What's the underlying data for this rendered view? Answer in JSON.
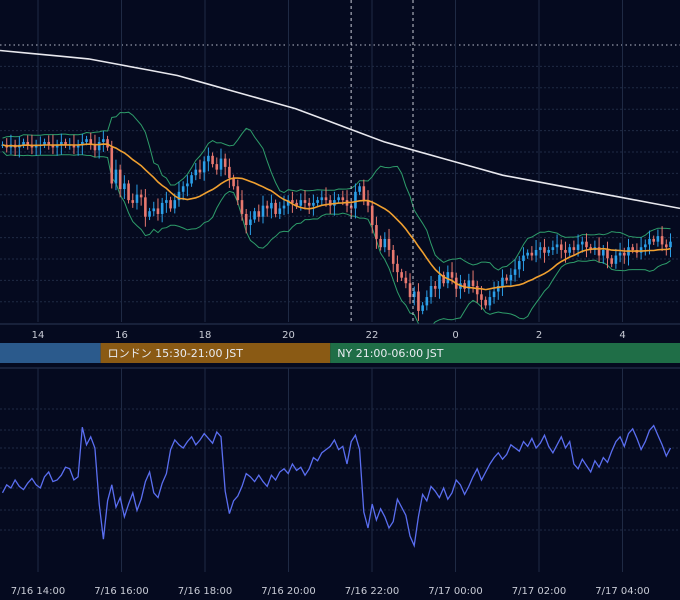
{
  "colors": {
    "background": "#050a1f",
    "grid": "#1f2a44",
    "bull": "#2b9fe8",
    "bear": "#e8786f",
    "ma_long": "#e8e8ee",
    "ma_mid": "#f0a030",
    "bollinger": "#2e9d6a",
    "oscillator": "#5a6ef0",
    "tokyo": "#2b5a8c",
    "london": "#8a5a14",
    "newyork": "#1f6e47"
  },
  "chart_data": [
    {
      "type": "candlestick",
      "x_hour_ticks": [
        "14",
        "16",
        "18",
        "20",
        "22",
        "0",
        "2",
        "4"
      ],
      "sessions": [
        {
          "label": "",
          "start": "7/16 09:00",
          "end": "7/16 15:30",
          "color": "tokyo"
        },
        {
          "label": "ロンドン 15:30-21:00 JST",
          "start": "7/16 15:30",
          "end": "7/16 21:00",
          "color": "london"
        },
        {
          "label": "NY 21:00-06:00 JST",
          "start": "7/16 21:00",
          "end": "7/17 06:00",
          "color": "newyork"
        }
      ],
      "crosshair_time": "7/16 21:30",
      "series_close": [
        0.64,
        0.63,
        0.64,
        0.63,
        0.64,
        0.65,
        0.64,
        0.63,
        0.64,
        0.64,
        0.65,
        0.64,
        0.63,
        0.64,
        0.65,
        0.64,
        0.64,
        0.63,
        0.64,
        0.65,
        0.66,
        0.64,
        0.62,
        0.65,
        0.66,
        0.63,
        0.5,
        0.55,
        0.48,
        0.5,
        0.44,
        0.43,
        0.46,
        0.45,
        0.38,
        0.4,
        0.41,
        0.39,
        0.43,
        0.44,
        0.41,
        0.44,
        0.47,
        0.49,
        0.5,
        0.53,
        0.55,
        0.54,
        0.58,
        0.6,
        0.57,
        0.55,
        0.59,
        0.56,
        0.52,
        0.49,
        0.44,
        0.39,
        0.35,
        0.37,
        0.4,
        0.38,
        0.42,
        0.41,
        0.43,
        0.39,
        0.41,
        0.42,
        0.44,
        0.43,
        0.42,
        0.44,
        0.43,
        0.42,
        0.43,
        0.44,
        0.45,
        0.44,
        0.42,
        0.44,
        0.45,
        0.44,
        0.42,
        0.41,
        0.47,
        0.49,
        0.44,
        0.42,
        0.35,
        0.3,
        0.27,
        0.3,
        0.26,
        0.21,
        0.18,
        0.16,
        0.14,
        0.09,
        0.11,
        0.04,
        0.06,
        0.09,
        0.13,
        0.12,
        0.17,
        0.14,
        0.18,
        0.16,
        0.12,
        0.14,
        0.12,
        0.15,
        0.13,
        0.1,
        0.08,
        0.06,
        0.09,
        0.11,
        0.13,
        0.16,
        0.15,
        0.17,
        0.19,
        0.22,
        0.24,
        0.25,
        0.24,
        0.26,
        0.27,
        0.25,
        0.26,
        0.27,
        0.28,
        0.26,
        0.25,
        0.27,
        0.26,
        0.28,
        0.29,
        0.27,
        0.26,
        0.27,
        0.24,
        0.26,
        0.23,
        0.21,
        0.24,
        0.25,
        0.24,
        0.27,
        0.26,
        0.25,
        0.27,
        0.28,
        0.3,
        0.29,
        0.31,
        0.28,
        0.27,
        0.29
      ],
      "ma_long": [
        0.98,
        0.97,
        0.96,
        0.95,
        0.93,
        0.91,
        0.89,
        0.86,
        0.83,
        0.8,
        0.77,
        0.73,
        0.69,
        0.65,
        0.62,
        0.59,
        0.56,
        0.53,
        0.51,
        0.49,
        0.47,
        0.45,
        0.43,
        0.41
      ],
      "oscillator": [
        0.42,
        0.47,
        0.45,
        0.5,
        0.46,
        0.44,
        0.48,
        0.51,
        0.47,
        0.45,
        0.52,
        0.55,
        0.49,
        0.5,
        0.53,
        0.58,
        0.57,
        0.5,
        0.52,
        0.83,
        0.72,
        0.77,
        0.7,
        0.35,
        0.13,
        0.37,
        0.47,
        0.33,
        0.39,
        0.27,
        0.35,
        0.42,
        0.31,
        0.38,
        0.49,
        0.55,
        0.42,
        0.39,
        0.48,
        0.54,
        0.69,
        0.75,
        0.72,
        0.7,
        0.74,
        0.77,
        0.72,
        0.75,
        0.79,
        0.76,
        0.73,
        0.8,
        0.77,
        0.43,
        0.29,
        0.37,
        0.4,
        0.46,
        0.54,
        0.52,
        0.49,
        0.53,
        0.49,
        0.46,
        0.53,
        0.5,
        0.55,
        0.57,
        0.54,
        0.6,
        0.56,
        0.58,
        0.53,
        0.57,
        0.64,
        0.62,
        0.67,
        0.69,
        0.71,
        0.75,
        0.69,
        0.71,
        0.6,
        0.74,
        0.78,
        0.69,
        0.3,
        0.2,
        0.35,
        0.25,
        0.32,
        0.27,
        0.2,
        0.24,
        0.38,
        0.33,
        0.28,
        0.15,
        0.09,
        0.27,
        0.41,
        0.37,
        0.46,
        0.43,
        0.39,
        0.45,
        0.38,
        0.42,
        0.5,
        0.47,
        0.41,
        0.46,
        0.52,
        0.57,
        0.5,
        0.55,
        0.6,
        0.64,
        0.67,
        0.63,
        0.66,
        0.72,
        0.7,
        0.68,
        0.74,
        0.71,
        0.76,
        0.7,
        0.73,
        0.78,
        0.71,
        0.67,
        0.72,
        0.77,
        0.7,
        0.74,
        0.6,
        0.57,
        0.63,
        0.59,
        0.55,
        0.62,
        0.58,
        0.64,
        0.61,
        0.68,
        0.74,
        0.77,
        0.71,
        0.79,
        0.82,
        0.76,
        0.69,
        0.74,
        0.81,
        0.84,
        0.78,
        0.72,
        0.65,
        0.7
      ]
    }
  ],
  "bottom_axis": {
    "labels": [
      "7/16 14:00",
      "7/16 16:00",
      "7/16 18:00",
      "7/16 20:00",
      "7/16 22:00",
      "7/17 00:00",
      "7/17 02:00",
      "7/17 04:00"
    ]
  }
}
